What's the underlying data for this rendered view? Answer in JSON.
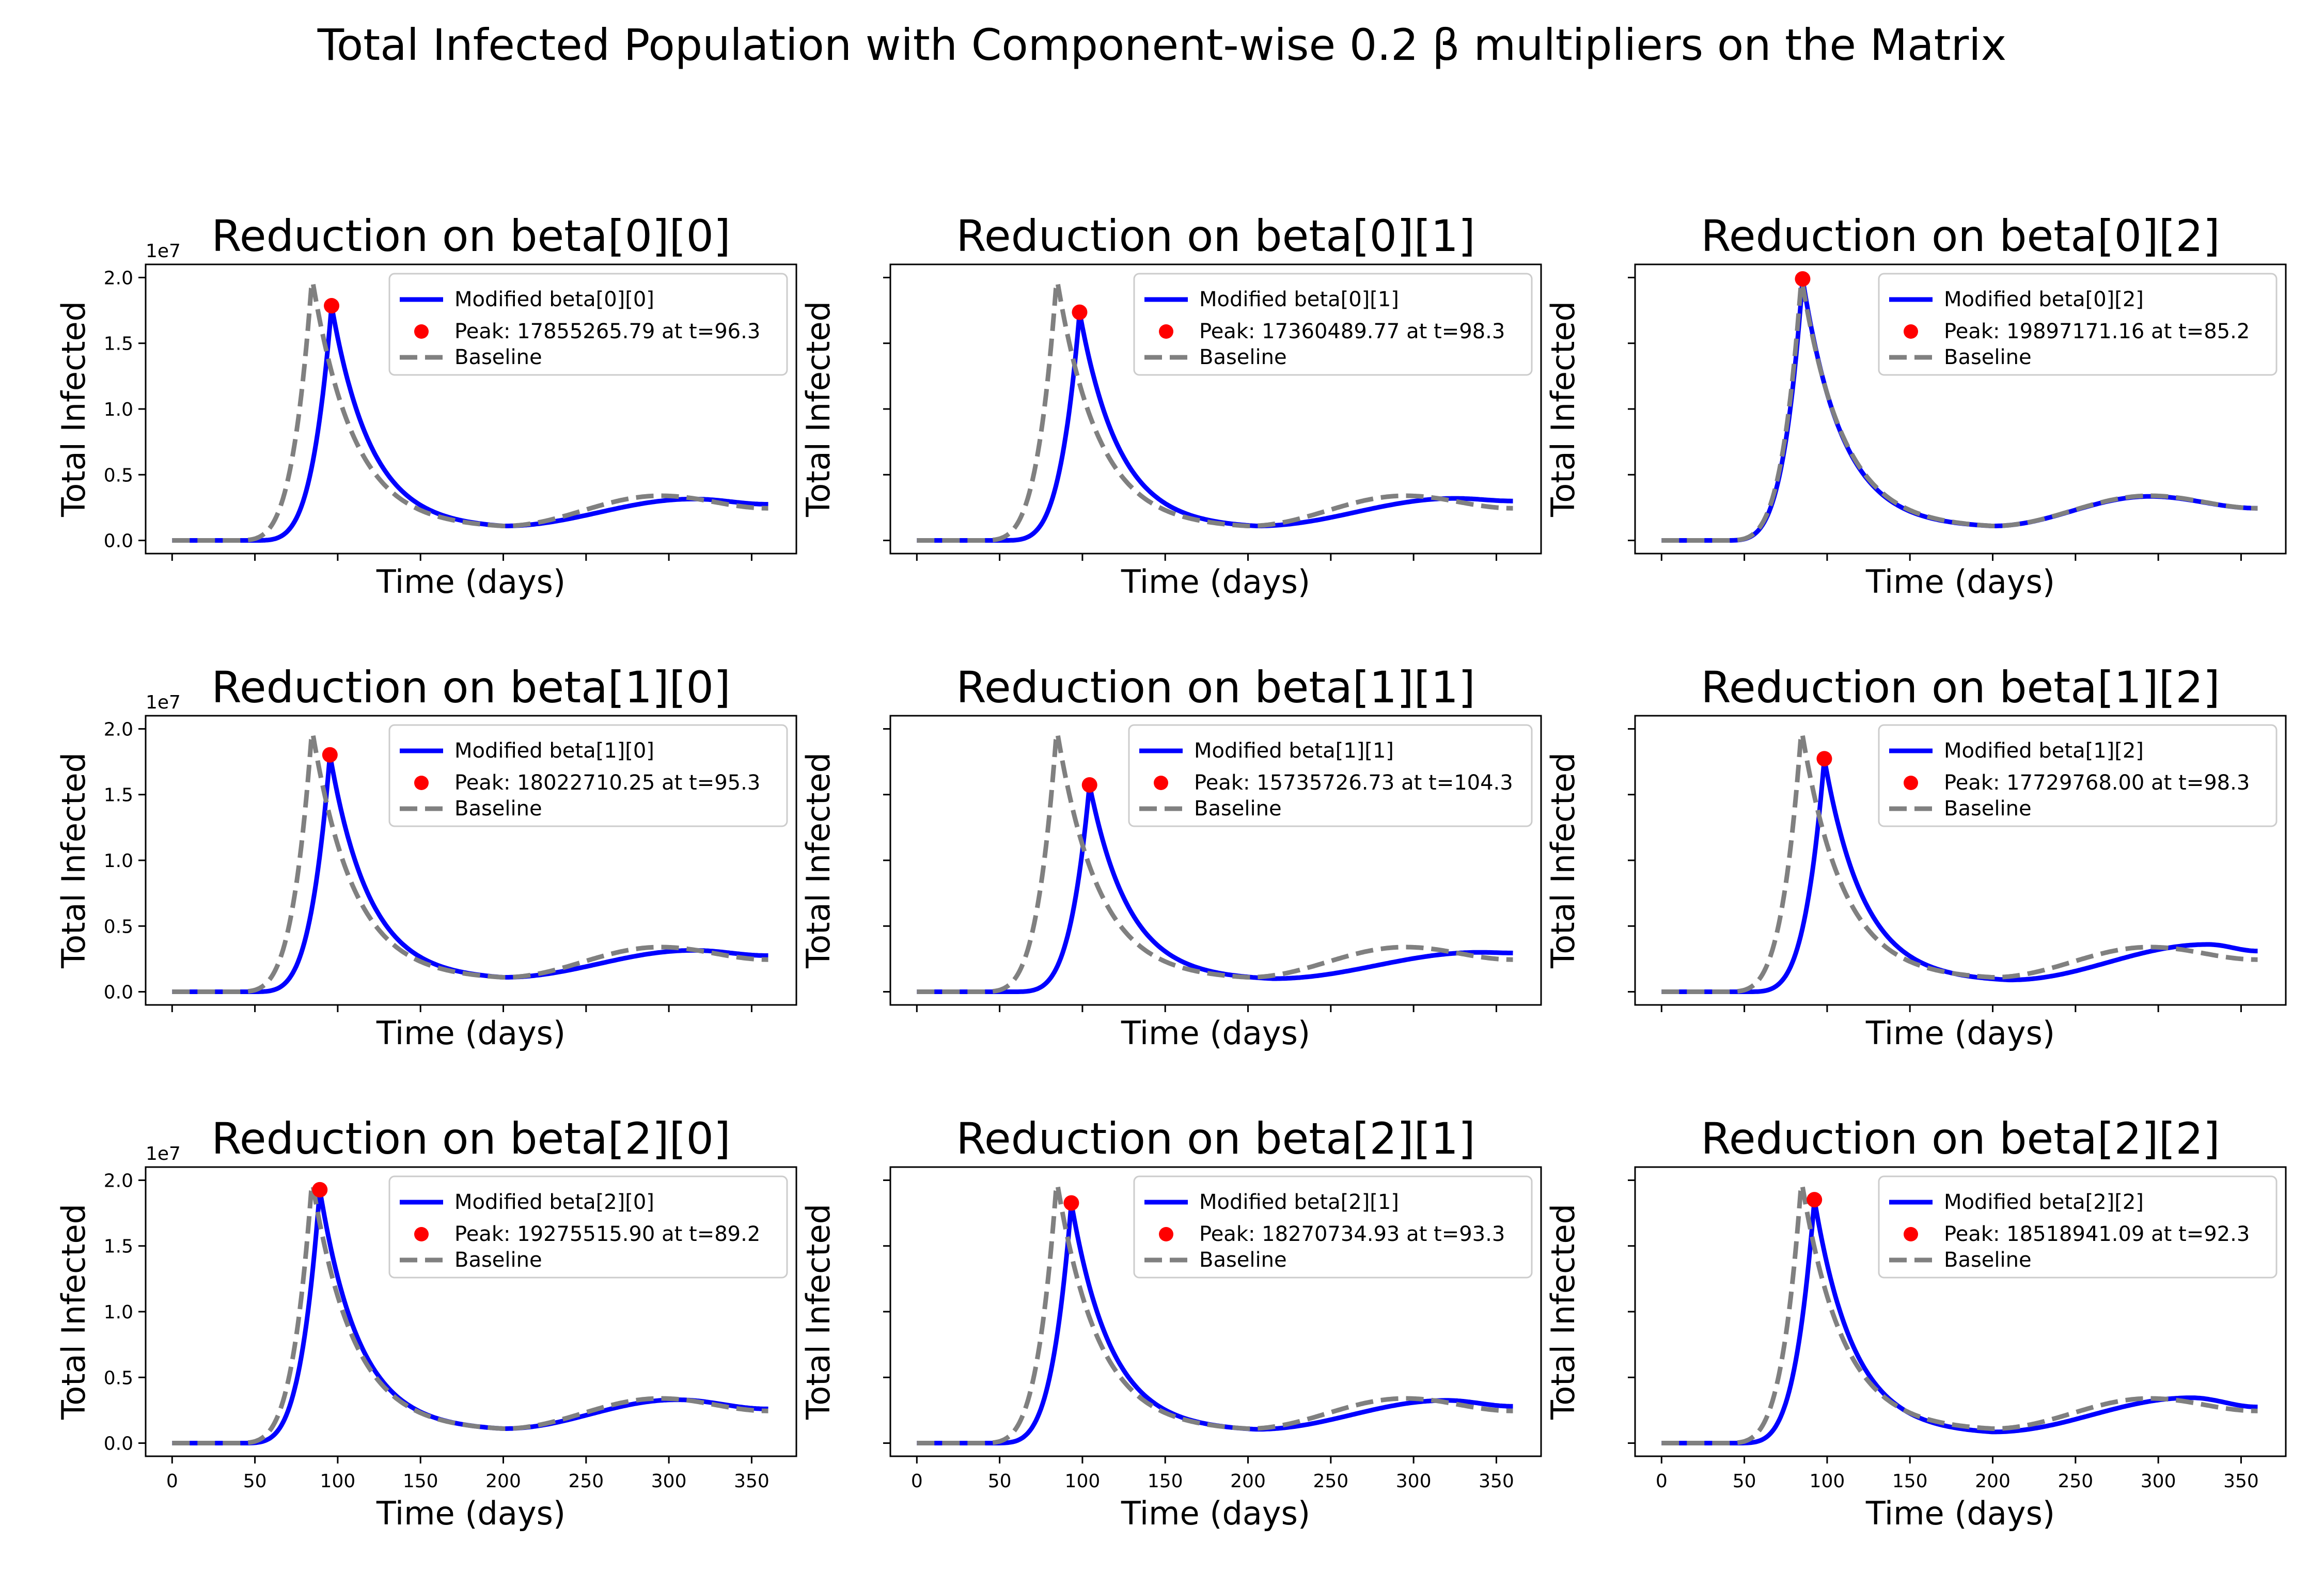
{
  "figure": {
    "title": "Total Infected Population with Component-wise 0.2 β multipliers on the Matrix"
  },
  "colors": {
    "modified": "#0000ff",
    "baseline": "#808080",
    "peak": "#ff0000"
  },
  "axes_common": {
    "xlabel": "Time (days)",
    "ylabel": "Total Infected",
    "xlim": [
      -16,
      377
    ],
    "ylim": [
      -1000000,
      21000000
    ],
    "xticks": [
      0,
      50,
      100,
      150,
      200,
      250,
      300,
      350
    ],
    "yticks": [
      0,
      5000000,
      10000000,
      15000000,
      20000000
    ],
    "ytick_labels": [
      "0.0",
      "0.5",
      "1.0",
      "1.5",
      "2.0"
    ],
    "y_offset_label": "1e7",
    "baseline_label": "Baseline",
    "legend_loc": "upper right",
    "grid": false
  },
  "baseline": {
    "peak_t": 84.5,
    "peak": 20000000,
    "rise": 9,
    "fall": 25,
    "trough_t": 200,
    "trough": 1100000,
    "wave2_t": 295,
    "wave2": 3400000,
    "end": 2450000
  },
  "chart_data": [
    {
      "type": "line",
      "title": "Reduction on beta[0][0]",
      "series_label": "Modified beta[0][0]",
      "peak_label": "Peak: 17855265.79 at t=96.3",
      "peak_t": 96.3,
      "peak_value": 17855265.79,
      "trough_t": 200,
      "trough": 1100000,
      "wave2_t": 315,
      "wave2": 3150000,
      "end": 2750000
    },
    {
      "type": "line",
      "title": "Reduction on beta[0][1]",
      "series_label": "Modified beta[0][1]",
      "peak_label": "Peak: 17360489.77 at t=98.3",
      "peak_t": 98.3,
      "peak_value": 17360489.77,
      "trough_t": 205,
      "trough": 1100000,
      "wave2_t": 325,
      "wave2": 3200000,
      "end": 3000000
    },
    {
      "type": "line",
      "title": "Reduction on beta[0][2]",
      "series_label": "Modified beta[0][2]",
      "peak_label": "Peak: 19897171.16 at t=85.2",
      "peak_t": 85.2,
      "peak_value": 19897171.16,
      "trough_t": 200,
      "trough": 1100000,
      "wave2_t": 295,
      "wave2": 3350000,
      "end": 2450000
    },
    {
      "type": "line",
      "title": "Reduction on beta[1][0]",
      "series_label": "Modified beta[1][0]",
      "peak_label": "Peak: 18022710.25 at t=95.3",
      "peak_t": 95.3,
      "peak_value": 18022710.25,
      "trough_t": 200,
      "trough": 1100000,
      "wave2_t": 315,
      "wave2": 3150000,
      "end": 2750000
    },
    {
      "type": "line",
      "title": "Reduction on beta[1][1]",
      "series_label": "Modified beta[1][1]",
      "peak_label": "Peak: 15735726.73 at t=104.3",
      "peak_t": 104.3,
      "peak_value": 15735726.73,
      "trough_t": 215,
      "trough": 1000000,
      "wave2_t": 340,
      "wave2": 3000000,
      "end": 2950000
    },
    {
      "type": "line",
      "title": "Reduction on beta[1][2]",
      "series_label": "Modified beta[1][2]",
      "peak_label": "Peak: 17729768.00 at t=98.3",
      "peak_t": 98.3,
      "peak_value": 17729768.0,
      "trough_t": 210,
      "trough": 900000,
      "wave2_t": 330,
      "wave2": 3600000,
      "end": 3100000
    },
    {
      "type": "line",
      "title": "Reduction on beta[2][0]",
      "series_label": "Modified beta[2][0]",
      "peak_label": "Peak: 19275515.90 at t=89.2",
      "peak_t": 89.2,
      "peak_value": 19275515.9,
      "trough_t": 200,
      "trough": 1100000,
      "wave2_t": 305,
      "wave2": 3300000,
      "end": 2600000
    },
    {
      "type": "line",
      "title": "Reduction on beta[2][1]",
      "series_label": "Modified beta[2][1]",
      "peak_label": "Peak: 18270734.93 at t=93.3",
      "peak_t": 93.3,
      "peak_value": 18270734.93,
      "trough_t": 205,
      "trough": 1050000,
      "wave2_t": 320,
      "wave2": 3250000,
      "end": 2800000
    },
    {
      "type": "line",
      "title": "Reduction on beta[2][2]",
      "series_label": "Modified beta[2][2]",
      "peak_label": "Peak: 18518941.09 at t=92.3",
      "peak_t": 92.3,
      "peak_value": 18518941.09,
      "trough_t": 200,
      "trough": 850000,
      "wave2_t": 320,
      "wave2": 3450000,
      "end": 2750000
    }
  ]
}
